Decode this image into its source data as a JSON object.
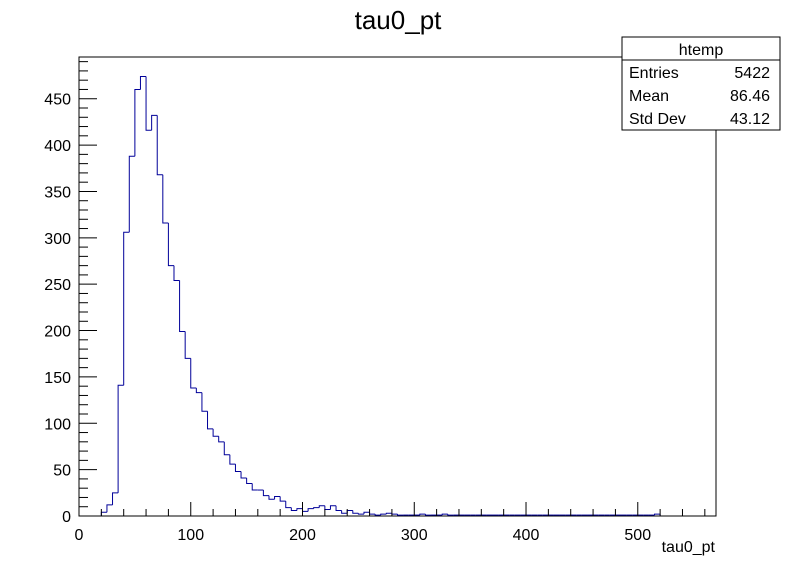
{
  "chart_data": {
    "type": "bar",
    "title": "tau0_pt",
    "xlabel": "tau0_pt",
    "ylabel": "",
    "xlim": [
      0,
      570
    ],
    "ylim": [
      0,
      495
    ],
    "bin_width": 5,
    "x_start": 20,
    "x_ticks": [
      "0",
      "100",
      "200",
      "300",
      "400",
      "500"
    ],
    "x_tick_values": [
      0,
      100,
      200,
      300,
      400,
      500
    ],
    "y_ticks": [
      "0",
      "50",
      "100",
      "150",
      "200",
      "250",
      "300",
      "350",
      "400",
      "450"
    ],
    "y_tick_values": [
      0,
      50,
      100,
      150,
      200,
      250,
      300,
      350,
      400,
      450
    ],
    "values": [
      4,
      12,
      25,
      141,
      306,
      388,
      460,
      474,
      416,
      432,
      368,
      316,
      270,
      254,
      199,
      170,
      138,
      133,
      113,
      94,
      86,
      80,
      66,
      56,
      48,
      41,
      35,
      28,
      28,
      22,
      18,
      21,
      16,
      9,
      6,
      8,
      5,
      8,
      9,
      11,
      7,
      11,
      6,
      3,
      6,
      3,
      2,
      4,
      2,
      1,
      2,
      3,
      2,
      1,
      1,
      1,
      1,
      2,
      1,
      1,
      1,
      2,
      1,
      1,
      1,
      1,
      1,
      1,
      1,
      1,
      1,
      1,
      1,
      1,
      1,
      1,
      1,
      1,
      1,
      1,
      1,
      1,
      1,
      1,
      1,
      1,
      1,
      1,
      1,
      1,
      1,
      1,
      1,
      1,
      1,
      1,
      1,
      1,
      1,
      2
    ],
    "line_color": "#000099",
    "grid": false,
    "stats_box": {
      "name": "htemp",
      "rows": [
        {
          "label": "Entries",
          "value": "5422"
        },
        {
          "label": "Mean",
          "value": "86.46"
        },
        {
          "label": "Std Dev",
          "value": "43.12"
        }
      ]
    }
  }
}
